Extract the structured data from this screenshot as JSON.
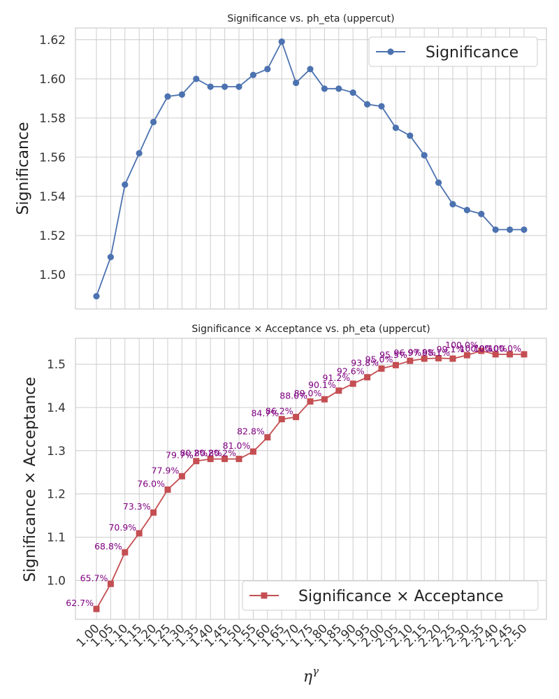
{
  "chart_data": [
    {
      "type": "line",
      "title": "Significance vs. ph_eta (uppercut)",
      "xlabel": "",
      "ylabel": "Significance",
      "x": [
        "1.00",
        "1.05",
        "1.10",
        "1.15",
        "1.20",
        "1.25",
        "1.30",
        "1.35",
        "1.40",
        "1.45",
        "1.50",
        "1.55",
        "1.60",
        "1.65",
        "1.70",
        "1.75",
        "1.80",
        "1.85",
        "1.90",
        "1.95",
        "2.00",
        "2.05",
        "2.10",
        "2.15",
        "2.20",
        "2.25",
        "2.30",
        "2.35",
        "2.40",
        "2.45",
        "2.50"
      ],
      "series": [
        {
          "name": "Significance",
          "color": "#4c72b0",
          "marker": "circle",
          "values": [
            1.489,
            1.509,
            1.546,
            1.562,
            1.578,
            1.591,
            1.592,
            1.6,
            1.596,
            1.596,
            1.596,
            1.602,
            1.605,
            1.619,
            1.598,
            1.605,
            1.595,
            1.595,
            1.593,
            1.587,
            1.586,
            1.575,
            1.571,
            1.561,
            1.547,
            1.536,
            1.533,
            1.531,
            1.523,
            1.523,
            1.523
          ]
        }
      ],
      "ylim": [
        1.4825,
        1.626
      ],
      "yticks": [
        "1.50",
        "1.52",
        "1.54",
        "1.56",
        "1.58",
        "1.60",
        "1.62"
      ],
      "grid": true,
      "legend_position": "upper-right"
    },
    {
      "type": "line",
      "title": "Significance × Acceptance vs. ph_eta (uppercut)",
      "xlabel": "η^γ",
      "xlabel_base": "η",
      "xlabel_sup": "γ",
      "ylabel": "Significance × Acceptance",
      "x": [
        "1.00",
        "1.05",
        "1.10",
        "1.15",
        "1.20",
        "1.25",
        "1.30",
        "1.35",
        "1.40",
        "1.45",
        "1.50",
        "1.55",
        "1.60",
        "1.65",
        "1.70",
        "1.75",
        "1.80",
        "1.85",
        "1.90",
        "1.95",
        "2.00",
        "2.05",
        "2.10",
        "2.15",
        "2.20",
        "2.25",
        "2.30",
        "2.35",
        "2.40",
        "2.45",
        "2.50"
      ],
      "series": [
        {
          "name": "Significance × Acceptance",
          "color": "#c44e52",
          "marker": "square",
          "values": [
            0.934,
            0.992,
            1.065,
            1.109,
            1.157,
            1.21,
            1.241,
            1.276,
            1.281,
            1.281,
            1.281,
            1.298,
            1.331,
            1.373,
            1.378,
            1.414,
            1.419,
            1.439,
            1.455,
            1.47,
            1.49,
            1.498,
            1.508,
            1.513,
            1.514,
            1.513,
            1.521,
            1.531,
            1.523,
            1.523,
            1.523
          ]
        }
      ],
      "annotations": [
        "62.7%",
        "65.7%",
        "68.8%",
        "70.9%",
        "73.3%",
        "76.0%",
        "77.9%",
        "79.7%",
        "80.2%",
        "80.2%",
        "80.2%",
        "81.0%",
        "82.8%",
        "84.7%",
        "86.2%",
        "88.0%",
        "89.0%",
        "90.1%",
        "91.2%",
        "92.6%",
        "93.8%",
        "95.0%",
        "95.5%",
        "96.9%",
        "97.8%",
        "98.1%",
        "99.1%",
        "100.0%",
        "100.0%",
        "100.0%",
        "100.0%"
      ],
      "ylim": [
        0.91,
        1.56
      ],
      "yticks": [
        "1.0",
        "1.1",
        "1.2",
        "1.3",
        "1.4",
        "1.5"
      ],
      "grid": true,
      "legend_position": "lower-right"
    }
  ]
}
